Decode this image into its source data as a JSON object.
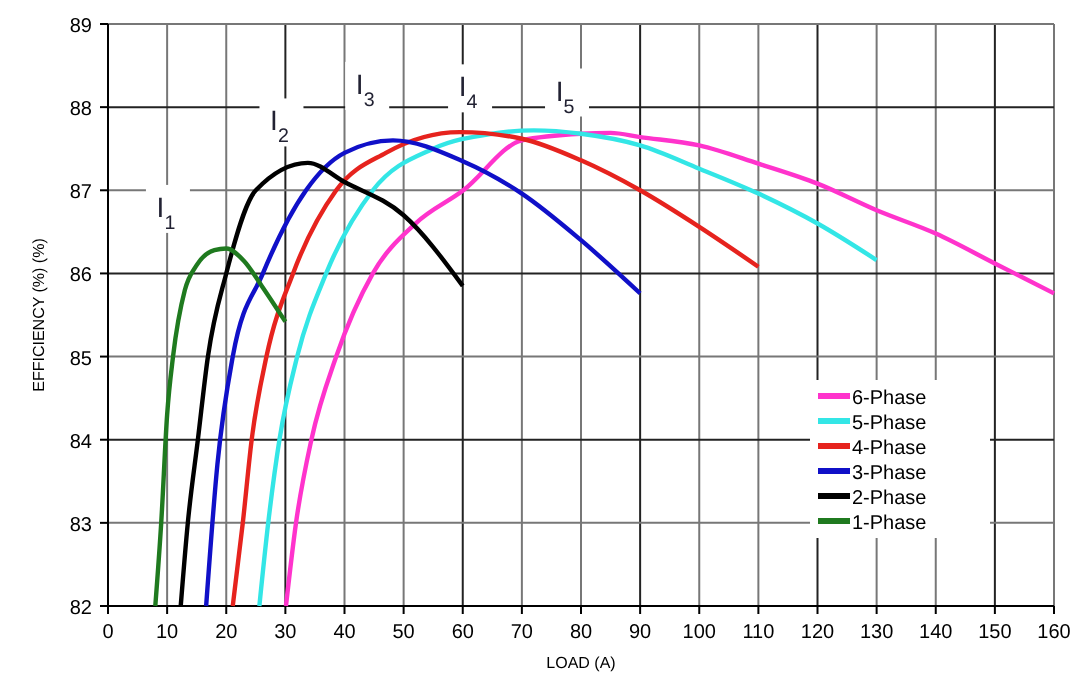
{
  "chart_data": {
    "type": "line",
    "xlabel": "LOAD (A)",
    "ylabel": "EFFICIENCY (%) (%)",
    "xlim": [
      0,
      160
    ],
    "xticks": [
      0,
      10,
      20,
      30,
      40,
      50,
      60,
      70,
      80,
      90,
      100,
      110,
      120,
      130,
      140,
      150,
      160
    ],
    "ylim": [
      82,
      89
    ],
    "yticks": [
      82,
      83,
      84,
      85,
      86,
      87,
      88,
      89
    ],
    "grid": true,
    "legend": "bottom right",
    "marker": "none",
    "line_style": "solid",
    "series": [
      {
        "name": "6-Phase",
        "color": "#ff33cc",
        "x": [
          30.1,
          31.8,
          34.4,
          38.6,
          44.8,
          52,
          60.1,
          70,
          80,
          85,
          90,
          100,
          110,
          120,
          130,
          140,
          150,
          160
        ],
        "values": [
          82,
          83,
          84,
          85,
          86,
          86.6,
          87,
          87.6,
          87.68,
          87.69,
          87.64,
          87.54,
          87.32,
          87.08,
          86.76,
          86.48,
          86.12,
          85.76
        ]
      },
      {
        "name": "5-Phase",
        "color": "#33e6e6",
        "x": [
          25.6,
          27.1,
          29,
          32,
          36.9,
          44.8,
          55,
          65,
          72,
          80,
          90,
          100,
          110,
          120,
          130
        ],
        "values": [
          82,
          83,
          84,
          85,
          86,
          87,
          87.5,
          87.68,
          87.72,
          87.68,
          87.54,
          87.26,
          86.96,
          86.6,
          86.16
        ]
      },
      {
        "name": "4-Phase",
        "color": "#e6231e",
        "x": [
          21.1,
          22.8,
          24.3,
          26.8,
          31.3,
          38.6,
          47,
          59.5,
          70,
          80,
          90,
          100,
          110
        ],
        "values": [
          82,
          83,
          84,
          85,
          86,
          87,
          87.45,
          87.7,
          87.62,
          87.36,
          87,
          86.56,
          86.08
        ]
      },
      {
        "name": "3-Phase",
        "color": "#1010c8",
        "x": [
          16.6,
          18.5,
          21.1,
          26.2,
          33.5,
          40,
          48.2,
          60,
          70,
          80,
          90
        ],
        "values": [
          82,
          83.7,
          85,
          86,
          87,
          87.45,
          87.6,
          87.35,
          86.96,
          86.4,
          85.76
        ]
      },
      {
        "name": "2-Phase",
        "color": "#000000",
        "x": [
          12.3,
          13.5,
          15.2,
          16.9,
          20,
          25,
          33.8,
          40,
          50,
          60
        ],
        "values": [
          82,
          83,
          84,
          85,
          86,
          87,
          87.33,
          87.1,
          86.7,
          85.85
        ]
      },
      {
        "name": "1-Phase",
        "color": "#1f7a1f",
        "x": [
          8,
          9,
          10,
          11,
          13,
          15,
          18,
          20,
          23,
          26,
          30
        ],
        "values": [
          82,
          83,
          84.3,
          85,
          85.8,
          86.1,
          86.28,
          86.3,
          86.15,
          85.85,
          85.42
        ]
      }
    ],
    "annotations": [
      {
        "text": "I$_{1}$",
        "x": 9.8,
        "y": 86.8
      },
      {
        "text": "I$_{2}$",
        "x": 29,
        "y": 87.84
      },
      {
        "text": "I$_{3}$",
        "x": 43.5,
        "y": 88.28
      },
      {
        "text": "I$_{4}$",
        "x": 60.9,
        "y": 88.25
      },
      {
        "text": "I$_{5}$",
        "x": 77.3,
        "y": 88.2
      }
    ]
  }
}
